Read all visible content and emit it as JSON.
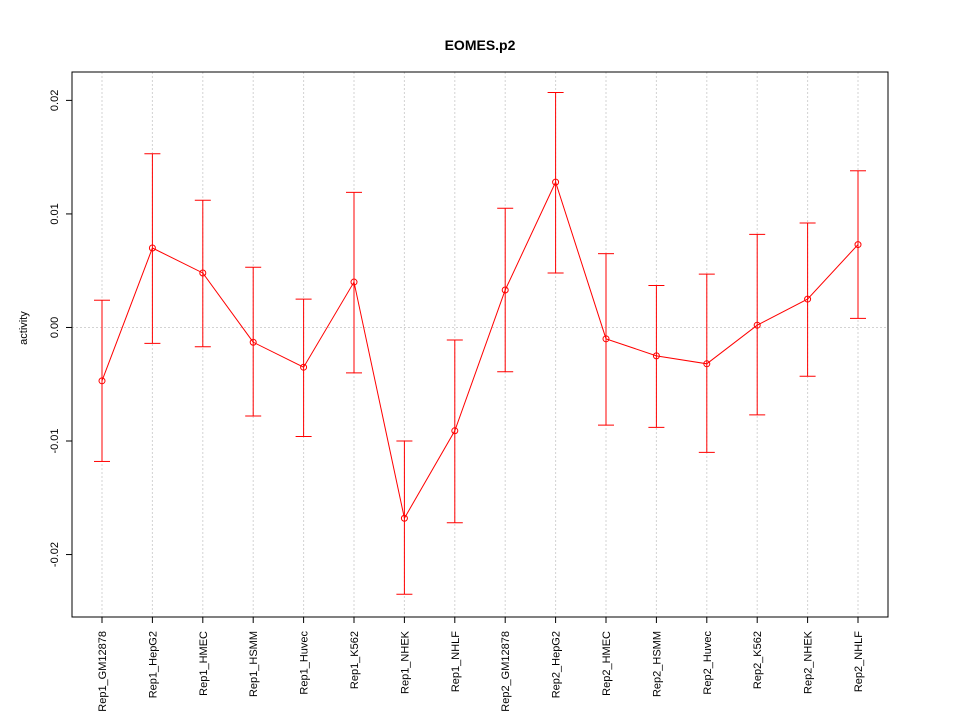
{
  "chart_data": {
    "type": "line",
    "title": "EOMES.p2",
    "xlabel": "",
    "ylabel": "activity",
    "ylim": [
      -0.0255,
      0.0225
    ],
    "yticks": [
      -0.02,
      -0.01,
      0.0,
      0.01,
      0.02
    ],
    "ytick_labels": [
      "-0.02",
      "-0.01",
      "0.00",
      "0.01",
      "0.02"
    ],
    "grid": true,
    "reference_line_y": 0.0,
    "series_color": "#ff0000",
    "categories": [
      "Rep1_GM12878",
      "Rep1_HepG2",
      "Rep1_HMEC",
      "Rep1_HSMM",
      "Rep1_Huvec",
      "Rep1_K562",
      "Rep1_NHEK",
      "Rep1_NHLF",
      "Rep2_GM12878",
      "Rep2_HepG2",
      "Rep2_HMEC",
      "Rep2_HSMM",
      "Rep2_Huvec",
      "Rep2_K562",
      "Rep2_NHEK",
      "Rep2_NHLF"
    ],
    "values": [
      -0.0047,
      0.007,
      0.0048,
      -0.0013,
      -0.0035,
      0.004,
      -0.0168,
      -0.0091,
      0.0033,
      0.0128,
      -0.001,
      -0.0025,
      -0.0032,
      0.0002,
      0.0025,
      0.0073
    ],
    "error_upper": [
      0.0024,
      0.0153,
      0.0112,
      0.0053,
      0.0025,
      0.0119,
      -0.01,
      -0.0011,
      0.0105,
      0.0207,
      0.0065,
      0.0037,
      0.0047,
      0.0082,
      0.0092,
      0.0138
    ],
    "error_lower": [
      -0.0118,
      -0.0014,
      -0.0017,
      -0.0078,
      -0.0096,
      -0.004,
      -0.0235,
      -0.0172,
      -0.0039,
      0.0048,
      -0.0086,
      -0.0088,
      -0.011,
      -0.0077,
      -0.0043,
      0.0008
    ]
  }
}
